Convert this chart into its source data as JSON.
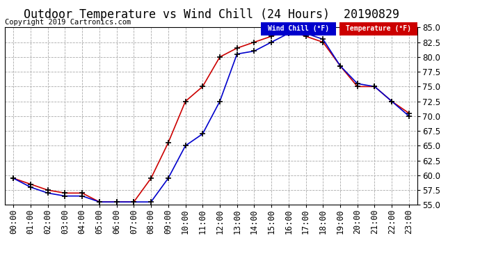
{
  "title": "Outdoor Temperature vs Wind Chill (24 Hours)  20190829",
  "copyright": "Copyright 2019 Cartronics.com",
  "hours": [
    "00:00",
    "01:00",
    "02:00",
    "03:00",
    "04:00",
    "05:00",
    "06:00",
    "07:00",
    "08:00",
    "09:00",
    "10:00",
    "11:00",
    "12:00",
    "13:00",
    "14:00",
    "15:00",
    "16:00",
    "17:00",
    "18:00",
    "19:00",
    "20:00",
    "21:00",
    "22:00",
    "23:00"
  ],
  "temperature": [
    59.5,
    58.5,
    57.5,
    57.0,
    57.0,
    55.5,
    55.5,
    55.5,
    59.5,
    65.5,
    72.5,
    75.0,
    80.0,
    81.5,
    82.5,
    83.5,
    84.5,
    83.5,
    82.5,
    78.5,
    75.0,
    75.0,
    72.5,
    70.5
  ],
  "wind_chill": [
    59.5,
    58.0,
    57.0,
    56.5,
    56.5,
    55.5,
    55.5,
    55.5,
    55.5,
    59.5,
    65.0,
    67.0,
    72.5,
    80.5,
    81.0,
    82.5,
    84.0,
    84.0,
    83.0,
    78.5,
    75.5,
    75.0,
    72.5,
    70.0
  ],
  "temp_color": "#cc0000",
  "wind_chill_color": "#0000cc",
  "bg_color": "#ffffff",
  "plot_bg_color": "#ffffff",
  "grid_color": "#aaaaaa",
  "ylim": [
    55.0,
    85.0
  ],
  "yticks": [
    55.0,
    57.5,
    60.0,
    62.5,
    65.0,
    67.5,
    70.0,
    72.5,
    75.0,
    77.5,
    80.0,
    82.5,
    85.0
  ],
  "legend_wc_bg": "#0000cc",
  "legend_temp_bg": "#cc0000",
  "legend_text_color": "#ffffff",
  "title_fontsize": 12,
  "copyright_fontsize": 7.5,
  "tick_fontsize": 8.5,
  "marker": "+",
  "marker_size": 6,
  "line_width": 1.2
}
